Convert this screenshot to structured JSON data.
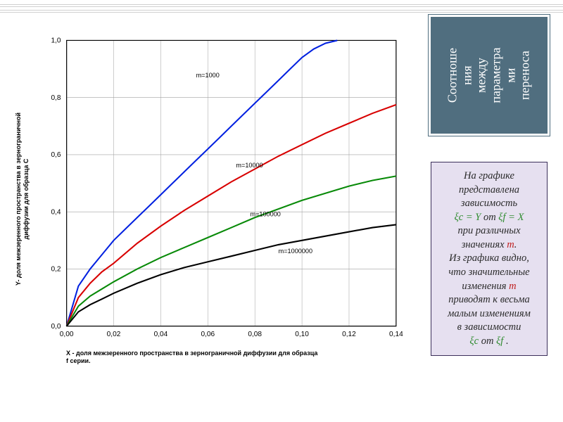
{
  "layout": {
    "top_rules_y": [
      6,
      14
    ]
  },
  "chart": {
    "type": "line",
    "background_color": "#ffffff",
    "plot_border_color": "#000000",
    "grid_color": "#a0a0a0",
    "grid_width": 0.5,
    "line_width": 2,
    "xlim": [
      0.0,
      0.14
    ],
    "ylim": [
      0.0,
      1.0
    ],
    "xtick_step": 0.02,
    "ytick_step": 0.2,
    "xticks": [
      "0,00",
      "0,02",
      "0,04",
      "0,06",
      "0,08",
      "0,10",
      "0,12",
      "0,14"
    ],
    "yticks": [
      "0,0",
      "0,2",
      "0,4",
      "0,6",
      "0,8",
      "1,0"
    ],
    "tick_fontsize": 10,
    "xlabel": "X  - доля межзеренного пространства в зернограничной диффузии для образца\nf  серии.",
    "ylabel": "Y- доля межзеренного пространства в зернограничной\nдиффузии для образца C",
    "label_fontsize": 9,
    "series": [
      {
        "name": "m=1000",
        "color": "#0020e0",
        "label_pos_x": 0.055,
        "label_pos_y": 0.87,
        "points_x": [
          0,
          0.005,
          0.01,
          0.015,
          0.02,
          0.025,
          0.03,
          0.035,
          0.04,
          0.045,
          0.05,
          0.055,
          0.06,
          0.065,
          0.07,
          0.075,
          0.08,
          0.085,
          0.09,
          0.095,
          0.1,
          0.105,
          0.11,
          0.115
        ],
        "points_y": [
          0,
          0.14,
          0.2,
          0.25,
          0.3,
          0.34,
          0.38,
          0.42,
          0.46,
          0.5,
          0.54,
          0.58,
          0.62,
          0.66,
          0.7,
          0.74,
          0.78,
          0.82,
          0.86,
          0.9,
          0.94,
          0.97,
          0.99,
          1.0
        ]
      },
      {
        "name": "m=10000",
        "color": "#d80000",
        "label_pos_x": 0.072,
        "label_pos_y": 0.555,
        "points_x": [
          0,
          0.005,
          0.01,
          0.015,
          0.02,
          0.025,
          0.03,
          0.04,
          0.05,
          0.06,
          0.07,
          0.08,
          0.09,
          0.1,
          0.11,
          0.12,
          0.13,
          0.14
        ],
        "points_y": [
          0,
          0.1,
          0.15,
          0.19,
          0.22,
          0.255,
          0.29,
          0.35,
          0.405,
          0.455,
          0.505,
          0.55,
          0.595,
          0.635,
          0.675,
          0.71,
          0.745,
          0.775
        ]
      },
      {
        "name": "m=100000",
        "color": "#088a08",
        "label_pos_x": 0.078,
        "label_pos_y": 0.385,
        "points_x": [
          0,
          0.005,
          0.01,
          0.015,
          0.02,
          0.03,
          0.04,
          0.05,
          0.06,
          0.07,
          0.08,
          0.09,
          0.1,
          0.11,
          0.12,
          0.13,
          0.14
        ],
        "points_y": [
          0,
          0.07,
          0.105,
          0.13,
          0.155,
          0.2,
          0.24,
          0.275,
          0.31,
          0.345,
          0.38,
          0.41,
          0.44,
          0.465,
          0.49,
          0.51,
          0.525
        ]
      },
      {
        "name": "m=1000000",
        "color": "#000000",
        "label_pos_x": 0.09,
        "label_pos_y": 0.255,
        "points_x": [
          0,
          0.005,
          0.01,
          0.015,
          0.02,
          0.03,
          0.04,
          0.05,
          0.06,
          0.07,
          0.08,
          0.09,
          0.1,
          0.11,
          0.12,
          0.13,
          0.14
        ],
        "points_y": [
          0,
          0.05,
          0.075,
          0.095,
          0.115,
          0.15,
          0.18,
          0.205,
          0.225,
          0.245,
          0.265,
          0.285,
          0.3,
          0.315,
          0.33,
          0.345,
          0.355
        ]
      }
    ]
  },
  "sidebar": {
    "title": "Соотноше\nния\nмежду\nпараметра\nми\nпереноса",
    "title_bg": "#506e7f",
    "title_color": "#ffffff",
    "desc": {
      "line1": "На графике",
      "line2": "представлена",
      "line3": "зависимость",
      "eq1_lhs": "ξc = Y",
      "eq1_mid": " от ",
      "eq1_rhs": "ξf = X",
      "line4a": "при различных",
      "line4b": "значениях ",
      "line4_m": "m",
      "line4c": ".",
      "line5a": "Из графика видно,",
      "line5b": "что значительные",
      "line5c": "изменения ",
      "line5_m": "m",
      "line6a": "приводят к весьма",
      "line6b": "малым изменениям",
      "line6c": "в зависимости",
      "eq2_lhs": "ξc",
      "eq2_mid": " от ",
      "eq2_rhs": "ξf",
      "eq2_end": " ."
    },
    "desc_bg": "#e6e0f0",
    "desc_border": "#3b2f5a"
  }
}
